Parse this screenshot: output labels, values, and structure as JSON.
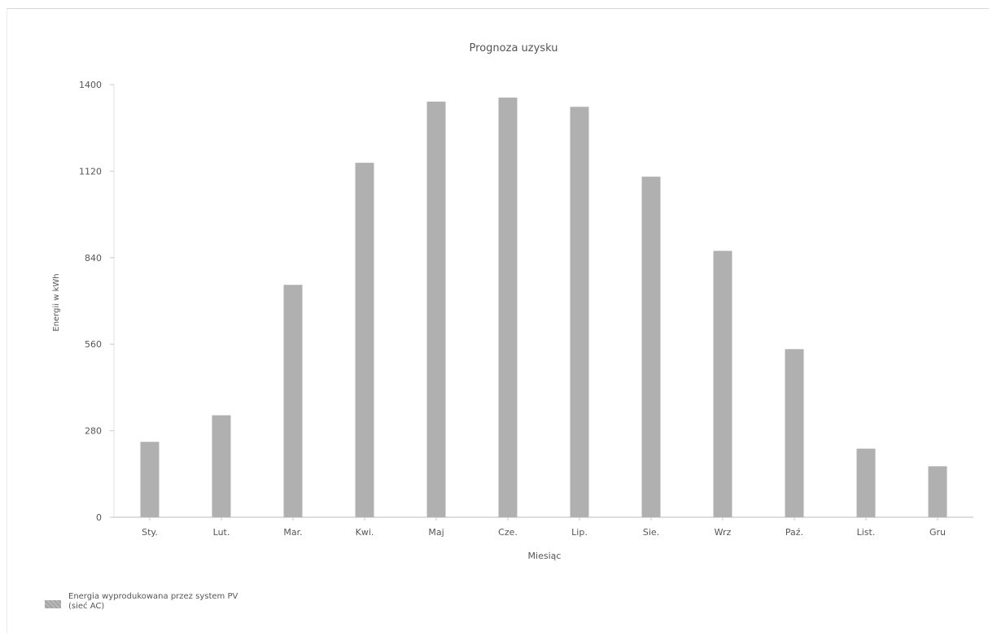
{
  "chart_data": {
    "type": "bar",
    "title": "Prognoza uzysku",
    "xlabel": "Miesiąc",
    "ylabel": "Energii w kWh",
    "ylim": [
      0,
      1400
    ],
    "yticks": [
      "0",
      "280",
      "560",
      "840",
      "1120",
      "1400"
    ],
    "categories": [
      "Sty.",
      "Lut.",
      "Mar.",
      "Kwi.",
      "Maj",
      "Cze.",
      "Lip.",
      "Sie.",
      "Wrz",
      "Paź.",
      "List.",
      "Gru"
    ],
    "series": [
      {
        "name": "Energia wyprodukowana przez system PV (sieć AC)",
        "values": [
          244,
          330,
          752,
          1147,
          1345,
          1358,
          1328,
          1102,
          862,
          544,
          222,
          165
        ]
      }
    ],
    "grid": false,
    "legend_position": "bottom-left",
    "bar_color": "#b0b0b0"
  }
}
